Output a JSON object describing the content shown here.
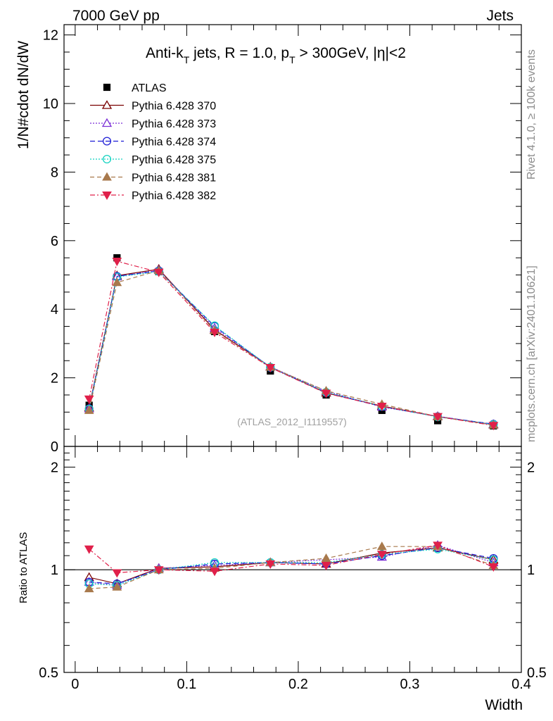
{
  "header": {
    "energy_label": "7000 GeV pp",
    "process_label": "Jets"
  },
  "side_labels": {
    "rivet": "Rivet 4.1.0, ≥ 100k events",
    "mcplots": "mcplots.cern.ch [arXiv:2401.10621]"
  },
  "chart_data": {
    "type": "line",
    "title_parts": {
      "a": "Anti-k",
      "a_sub": "T",
      "b": " jets, R = 1.0, p",
      "b_sub": "T",
      "c": " > 300GeV, |η|<2"
    },
    "watermark": "(ATLAS_2012_I1119557)",
    "xlabel": "Width",
    "ylabel": "1/N#cdot dN/dW",
    "ratio_ylabel": "Ratio to ATLAS",
    "xlim": [
      -0.01,
      0.4
    ],
    "ylim": [
      0,
      12.3
    ],
    "ratio_ylim": [
      0.5,
      2.3
    ],
    "main_y_ticks": [
      "0",
      "2",
      "4",
      "6",
      "8",
      "10",
      "12"
    ],
    "x_ticks": [
      "0",
      "0.1",
      "0.2",
      "0.3",
      "0.4"
    ],
    "ratio_y_ticks": [
      "0.5",
      "1",
      "2"
    ],
    "x": [
      0.0125,
      0.0375,
      0.075,
      0.125,
      0.175,
      0.225,
      0.275,
      0.325,
      0.375
    ],
    "data": {
      "name": "ATLAS",
      "values": [
        1.2,
        5.5,
        5.1,
        3.35,
        2.2,
        1.5,
        1.05,
        0.75,
        0.6
      ]
    },
    "series": [
      {
        "name": "Pythia 6.428 370",
        "color": "#7a0000",
        "dash": "",
        "marker": "triangle-open",
        "values": [
          1.13,
          4.98,
          5.17,
          3.4,
          2.32,
          1.56,
          1.18,
          0.87,
          0.64
        ]
      },
      {
        "name": "Pythia 6.428 373",
        "color": "#7b2fd6",
        "dash": "2,2",
        "marker": "triangle-open",
        "values": [
          1.1,
          4.95,
          5.14,
          3.45,
          2.32,
          1.61,
          1.15,
          0.88,
          0.63
        ]
      },
      {
        "name": "Pythia 6.428 374",
        "color": "#1d1dd6",
        "dash": "7,4",
        "marker": "circle-open",
        "values": [
          1.1,
          4.96,
          5.12,
          3.5,
          2.3,
          1.57,
          1.16,
          0.87,
          0.65
        ]
      },
      {
        "name": "Pythia 6.428 375",
        "color": "#12d2c0",
        "dash": "2,2",
        "marker": "circle-open",
        "values": [
          1.09,
          4.94,
          5.1,
          3.52,
          2.31,
          1.58,
          1.17,
          0.86,
          0.64
        ]
      },
      {
        "name": "Pythia 6.428 381",
        "color": "#a8794c",
        "dash": "6,4",
        "marker": "triangle-filled",
        "values": [
          1.05,
          4.78,
          5.13,
          3.38,
          2.31,
          1.62,
          1.23,
          0.87,
          0.62
        ]
      },
      {
        "name": "Pythia 6.428 382",
        "color": "#e0204a",
        "dash": "7,3,2,3",
        "marker": "triangle-down-filled",
        "values": [
          1.38,
          5.4,
          5.08,
          3.33,
          2.3,
          1.55,
          1.17,
          0.87,
          0.61
        ]
      }
    ],
    "ratio": {
      "reference": 1.0,
      "series_values": [
        [
          0.95,
          0.91,
          1.01,
          1.02,
          1.05,
          1.04,
          1.12,
          1.16,
          1.07
        ],
        [
          0.92,
          0.9,
          1.01,
          1.03,
          1.05,
          1.07,
          1.09,
          1.18,
          1.05
        ],
        [
          0.92,
          0.91,
          1.0,
          1.04,
          1.05,
          1.04,
          1.1,
          1.16,
          1.08
        ],
        [
          0.91,
          0.9,
          1.0,
          1.05,
          1.05,
          1.05,
          1.11,
          1.15,
          1.07
        ],
        [
          0.88,
          0.89,
          1.0,
          1.01,
          1.05,
          1.08,
          1.17,
          1.17,
          1.03
        ],
        [
          1.15,
          0.98,
          1.0,
          0.99,
          1.04,
          1.03,
          1.11,
          1.18,
          1.02
        ]
      ]
    }
  }
}
